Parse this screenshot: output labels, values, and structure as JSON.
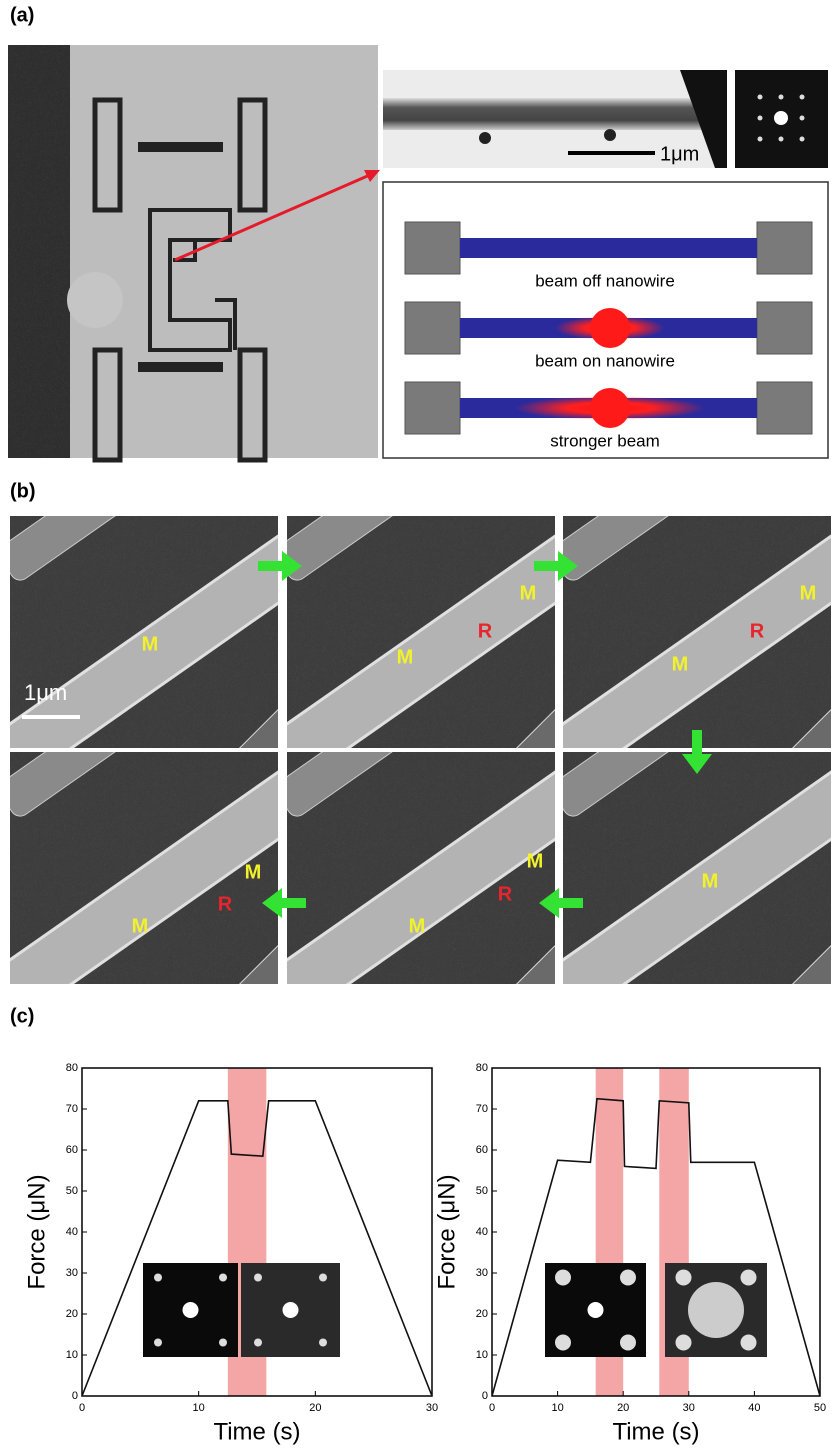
{
  "panel_a": {
    "label": "(a)",
    "scale_bar": "1μm",
    "schematic": [
      "beam off nanowire",
      "beam on nanowire",
      "stronger beam"
    ]
  },
  "panel_b": {
    "label": "(b)",
    "scale_bar": "1μm",
    "frames": [
      [
        "M"
      ],
      [
        "M",
        "R",
        "M"
      ],
      [
        "M",
        "R",
        "M"
      ],
      [
        "M",
        "R",
        "M"
      ],
      [
        "M",
        "R",
        "M"
      ],
      [
        "M"
      ]
    ]
  },
  "panel_c": {
    "label": "(c)"
  },
  "chart_data": [
    {
      "type": "line",
      "xlabel": "Time (s)",
      "ylabel": "Force (μN)",
      "x": [
        0,
        10,
        12.5,
        12.8,
        15.5,
        16,
        20,
        30
      ],
      "series": [
        {
          "color": "#111111",
          "values": [
            0,
            72,
            72,
            59,
            58.5,
            72,
            72,
            0
          ]
        }
      ],
      "highlight_ranges": [
        [
          12.5,
          15.8
        ]
      ],
      "highlight_color": "#f4a6a6",
      "xlim": [
        0,
        30
      ],
      "xticks": [
        0,
        10,
        20,
        30
      ],
      "ylim": [
        0,
        80
      ],
      "yticks": [
        0,
        10,
        20,
        30,
        40,
        50,
        60,
        70,
        80
      ]
    },
    {
      "type": "line",
      "xlabel": "Time (s)",
      "ylabel": "Force (μN)",
      "x": [
        0,
        10,
        15,
        16,
        20,
        20.2,
        25,
        25.5,
        30,
        30.3,
        40,
        50
      ],
      "series": [
        {
          "color": "#111111",
          "values": [
            0,
            57.5,
            57,
            72.5,
            72,
            56,
            55.5,
            72,
            71.5,
            57,
            57,
            0
          ]
        }
      ],
      "highlight_ranges": [
        [
          15.8,
          20
        ],
        [
          25.5,
          30
        ]
      ],
      "highlight_color": "#f4a6a6",
      "xlim": [
        0,
        50
      ],
      "xticks": [
        0,
        10,
        20,
        30,
        40,
        50
      ],
      "ylim": [
        0,
        80
      ],
      "yticks": [
        0,
        10,
        20,
        30,
        40,
        50,
        60,
        70,
        80
      ]
    }
  ]
}
